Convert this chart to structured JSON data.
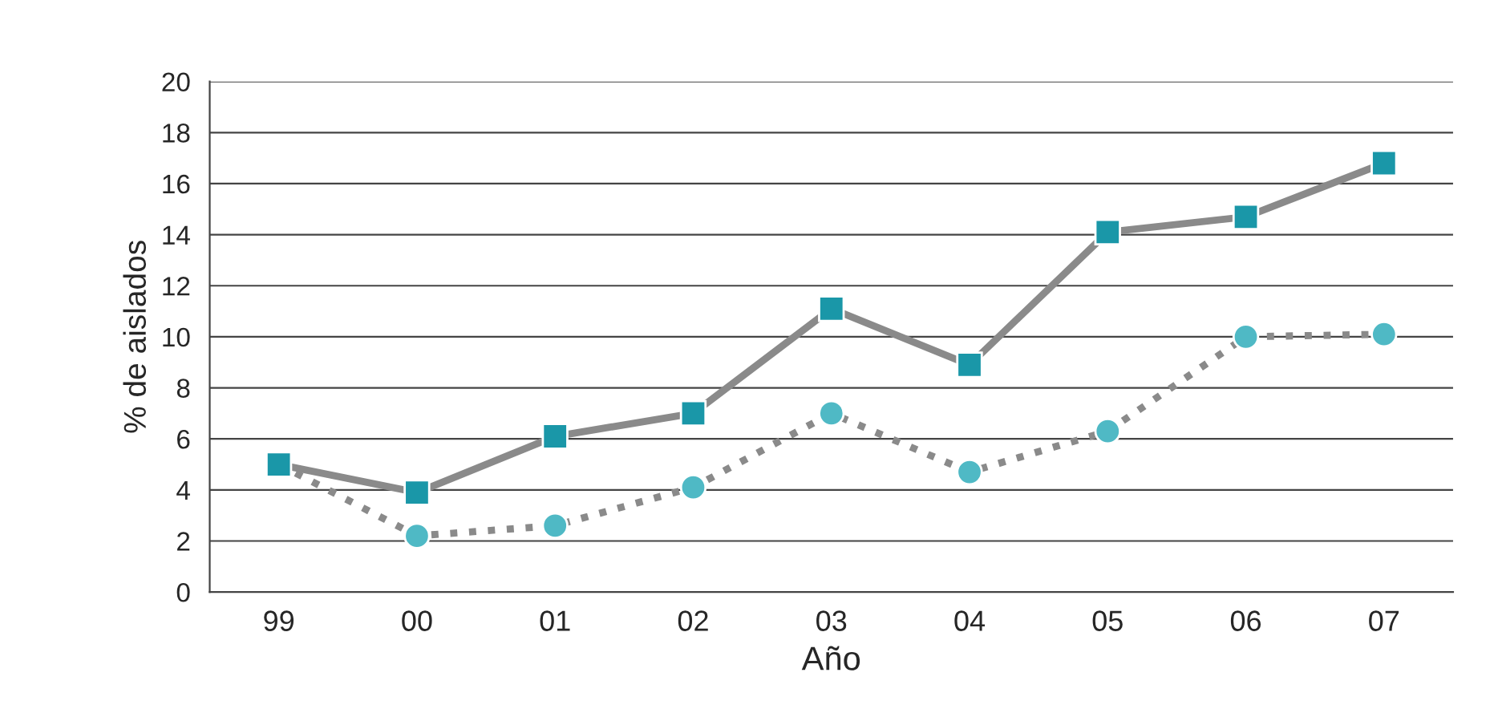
{
  "chart_data": {
    "type": "line",
    "xlabel": "Año",
    "ylabel": "% de aislados",
    "categories": [
      "99",
      "00",
      "01",
      "02",
      "03",
      "04",
      "05",
      "06",
      "07"
    ],
    "series": [
      {
        "color": "#1a97a8",
        "marker": "square",
        "line_style": "solid",
        "values": [
          5.0,
          3.9,
          6.1,
          7.0,
          11.1,
          8.9,
          14.1,
          14.7,
          16.8
        ]
      },
      {
        "color": "#4fb9c5",
        "marker": "circle",
        "line_style": "dotted",
        "values": [
          5.0,
          2.2,
          2.6,
          4.1,
          7.0,
          4.7,
          6.3,
          10.0,
          10.1
        ]
      }
    ],
    "ylim": [
      0,
      20
    ],
    "yticks": [
      0,
      2,
      4,
      6,
      8,
      10,
      12,
      14,
      16,
      18,
      20
    ],
    "grid": "y",
    "legend": false
  }
}
